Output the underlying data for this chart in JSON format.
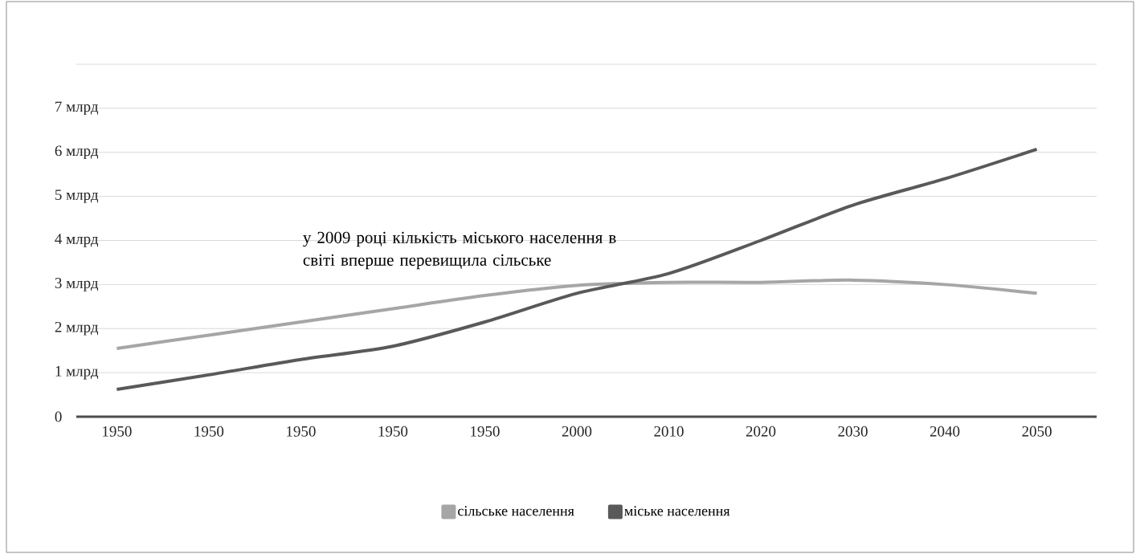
{
  "chart_data": {
    "type": "line",
    "categories": [
      "1950",
      "1950",
      "1950",
      "1950",
      "1950",
      "2000",
      "2010",
      "2020",
      "2030",
      "2040",
      "2050"
    ],
    "series": [
      {
        "name": "сільське населення",
        "color": "#a6a6a6",
        "values": [
          1.55,
          1.85,
          2.15,
          2.45,
          2.75,
          2.98,
          3.05,
          3.05,
          3.1,
          3.0,
          2.8
        ]
      },
      {
        "name": "міське населення",
        "color": "#595959",
        "values": [
          0.62,
          0.95,
          1.3,
          1.6,
          2.15,
          2.8,
          3.25,
          4.0,
          4.8,
          5.4,
          6.07
        ]
      }
    ],
    "ylim": [
      0,
      8
    ],
    "yticks": [
      0,
      {
        "value": 1,
        "label": "1 млрд"
      },
      {
        "value": 2,
        "label": "2 млрд"
      },
      {
        "value": 3,
        "label": "3 млрд"
      },
      {
        "value": 4,
        "label": "4 млрд"
      },
      {
        "value": 5,
        "label": "5 млрд"
      },
      {
        "value": 6,
        "label": "6 млрд"
      },
      {
        "value": 7,
        "label": "7 млрд"
      },
      {
        "value": 8,
        "label": null
      }
    ],
    "annotations": [
      "у 2009 році кількість міського населення в світі вперше перевищила сільське"
    ],
    "grid": "y",
    "legend": "bottom",
    "marker": "none",
    "line_style": "solid"
  }
}
